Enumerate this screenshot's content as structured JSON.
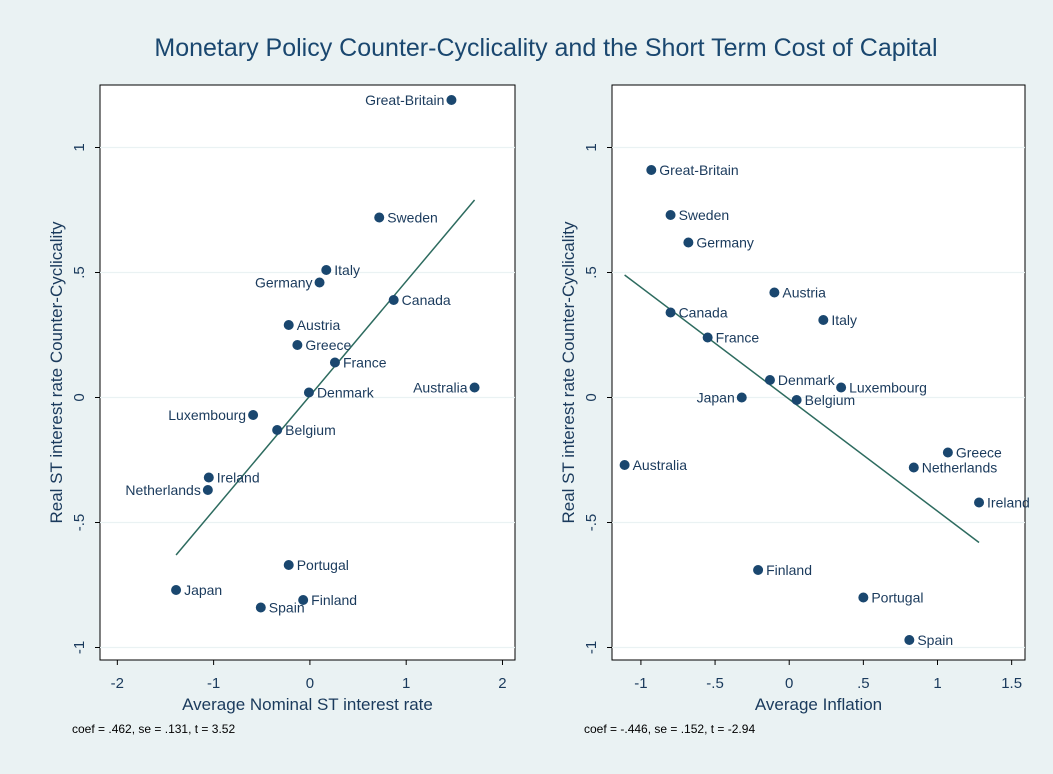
{
  "title": "Monetary Policy Counter-Cyclicality and the Short Term Cost of Capital",
  "chart_data": [
    {
      "type": "scatter",
      "color": "#1a476f",
      "line_color": "#2d6b5f",
      "grid": true,
      "x_label": "Average Nominal ST interest rate",
      "y_label": "Real ST interest rate Counter-Cyclicality",
      "note": "coef = .462, se = .131, t = 3.52",
      "labels": [
        "Great-Britain",
        "Sweden",
        "Italy",
        "Germany",
        "Canada",
        "Austria",
        "Greece",
        "France",
        "Denmark",
        "Australia",
        "Luxembourg",
        "Belgium",
        "Ireland",
        "Netherlands",
        "Portugal",
        "Finland",
        "Japan",
        "Spain"
      ],
      "x": [
        1.47,
        0.72,
        0.17,
        0.1,
        0.87,
        -0.22,
        -0.13,
        0.26,
        -0.01,
        1.71,
        -0.59,
        -0.34,
        -1.05,
        -1.06,
        -0.22,
        -0.07,
        -1.39,
        -0.51
      ],
      "values": [
        1.19,
        0.72,
        0.51,
        0.46,
        0.39,
        0.29,
        0.21,
        0.14,
        0.02,
        0.04,
        -0.07,
        -0.13,
        -0.32,
        -0.37,
        -0.67,
        -0.81,
        -0.77,
        -0.84
      ],
      "fit_line": {
        "x": [
          -1.39,
          1.71
        ],
        "values": [
          -0.63,
          0.79
        ]
      },
      "xlim": [
        -2.18,
        2.13
      ],
      "ylim": [
        -1.05,
        1.25
      ],
      "xticks": [
        -2,
        -1,
        0,
        1,
        2
      ],
      "yticks": [
        -1,
        {
          "value": -0.5,
          "label": "-.5"
        },
        0,
        {
          "value": 0.5,
          "label": ".5"
        },
        1
      ]
    },
    {
      "type": "scatter",
      "color": "#1a476f",
      "line_color": "#2d6b5f",
      "grid": true,
      "x_label": "Average Inflation",
      "y_label": "Real ST interest rate Counter-Cyclicality",
      "note": "coef = -.446, se = .152, t = -2.94",
      "labels": [
        "Great-Britain",
        "Sweden",
        "Germany",
        "Austria",
        "Canada",
        "Italy",
        "France",
        "Denmark",
        "Luxembourg",
        "Japan",
        "Belgium",
        "Greece",
        "Netherlands",
        "Australia",
        "Ireland",
        "Finland",
        "Portugal",
        "Spain"
      ],
      "x": [
        -0.93,
        -0.8,
        -0.68,
        -0.1,
        -0.8,
        0.23,
        -0.55,
        -0.13,
        0.35,
        -0.32,
        0.05,
        1.07,
        0.84,
        -1.11,
        1.28,
        -0.21,
        0.5,
        0.81
      ],
      "values": [
        0.91,
        0.73,
        0.62,
        0.42,
        0.34,
        0.31,
        0.24,
        0.07,
        0.04,
        0,
        -0.01,
        -0.22,
        -0.28,
        -0.27,
        -0.42,
        -0.69,
        -0.8,
        -0.97
      ],
      "fit_line": {
        "x": [
          -1.11,
          1.28
        ],
        "values": [
          0.49,
          -0.58
        ]
      },
      "xlim": [
        -1.195,
        1.59
      ],
      "ylim": [
        -1.05,
        1.25
      ],
      "xticks": [
        -1,
        {
          "value": -0.5,
          "label": "-.5"
        },
        0,
        {
          "value": 0.5,
          "label": ".5"
        },
        1,
        1.5
      ],
      "yticks": [
        -1,
        {
          "value": -0.5,
          "label": "-.5"
        },
        0,
        {
          "value": 0.5,
          "label": ".5"
        },
        1
      ]
    }
  ]
}
